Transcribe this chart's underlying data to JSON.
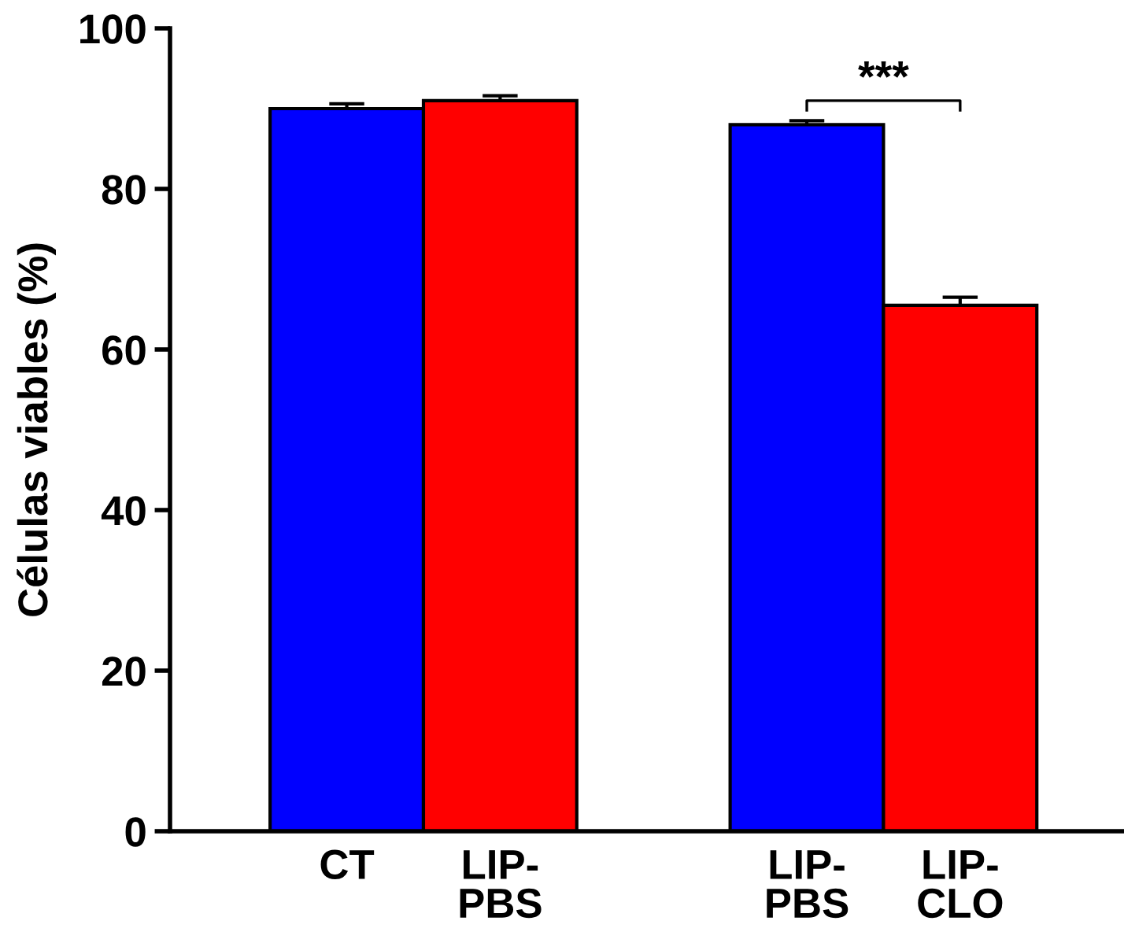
{
  "chart_data": {
    "type": "bar",
    "ylabel": "Células viables (%)",
    "categories": [
      "CT",
      "LIP-\nPBS",
      null,
      "LIP-\nPBS",
      "LIP-\nCLO"
    ],
    "values": [
      90,
      91,
      null,
      88,
      65.5
    ],
    "errors": [
      0.6,
      0.6,
      null,
      0.5,
      1.0
    ],
    "colors": [
      "#0000ff",
      "#ff0000",
      null,
      "#0000ff",
      "#ff0000"
    ],
    "ylim": [
      0,
      100
    ],
    "yticks": [
      0,
      20,
      40,
      60,
      80,
      100
    ],
    "grid": false,
    "legend": false,
    "annotations": [
      "***"
    ]
  }
}
